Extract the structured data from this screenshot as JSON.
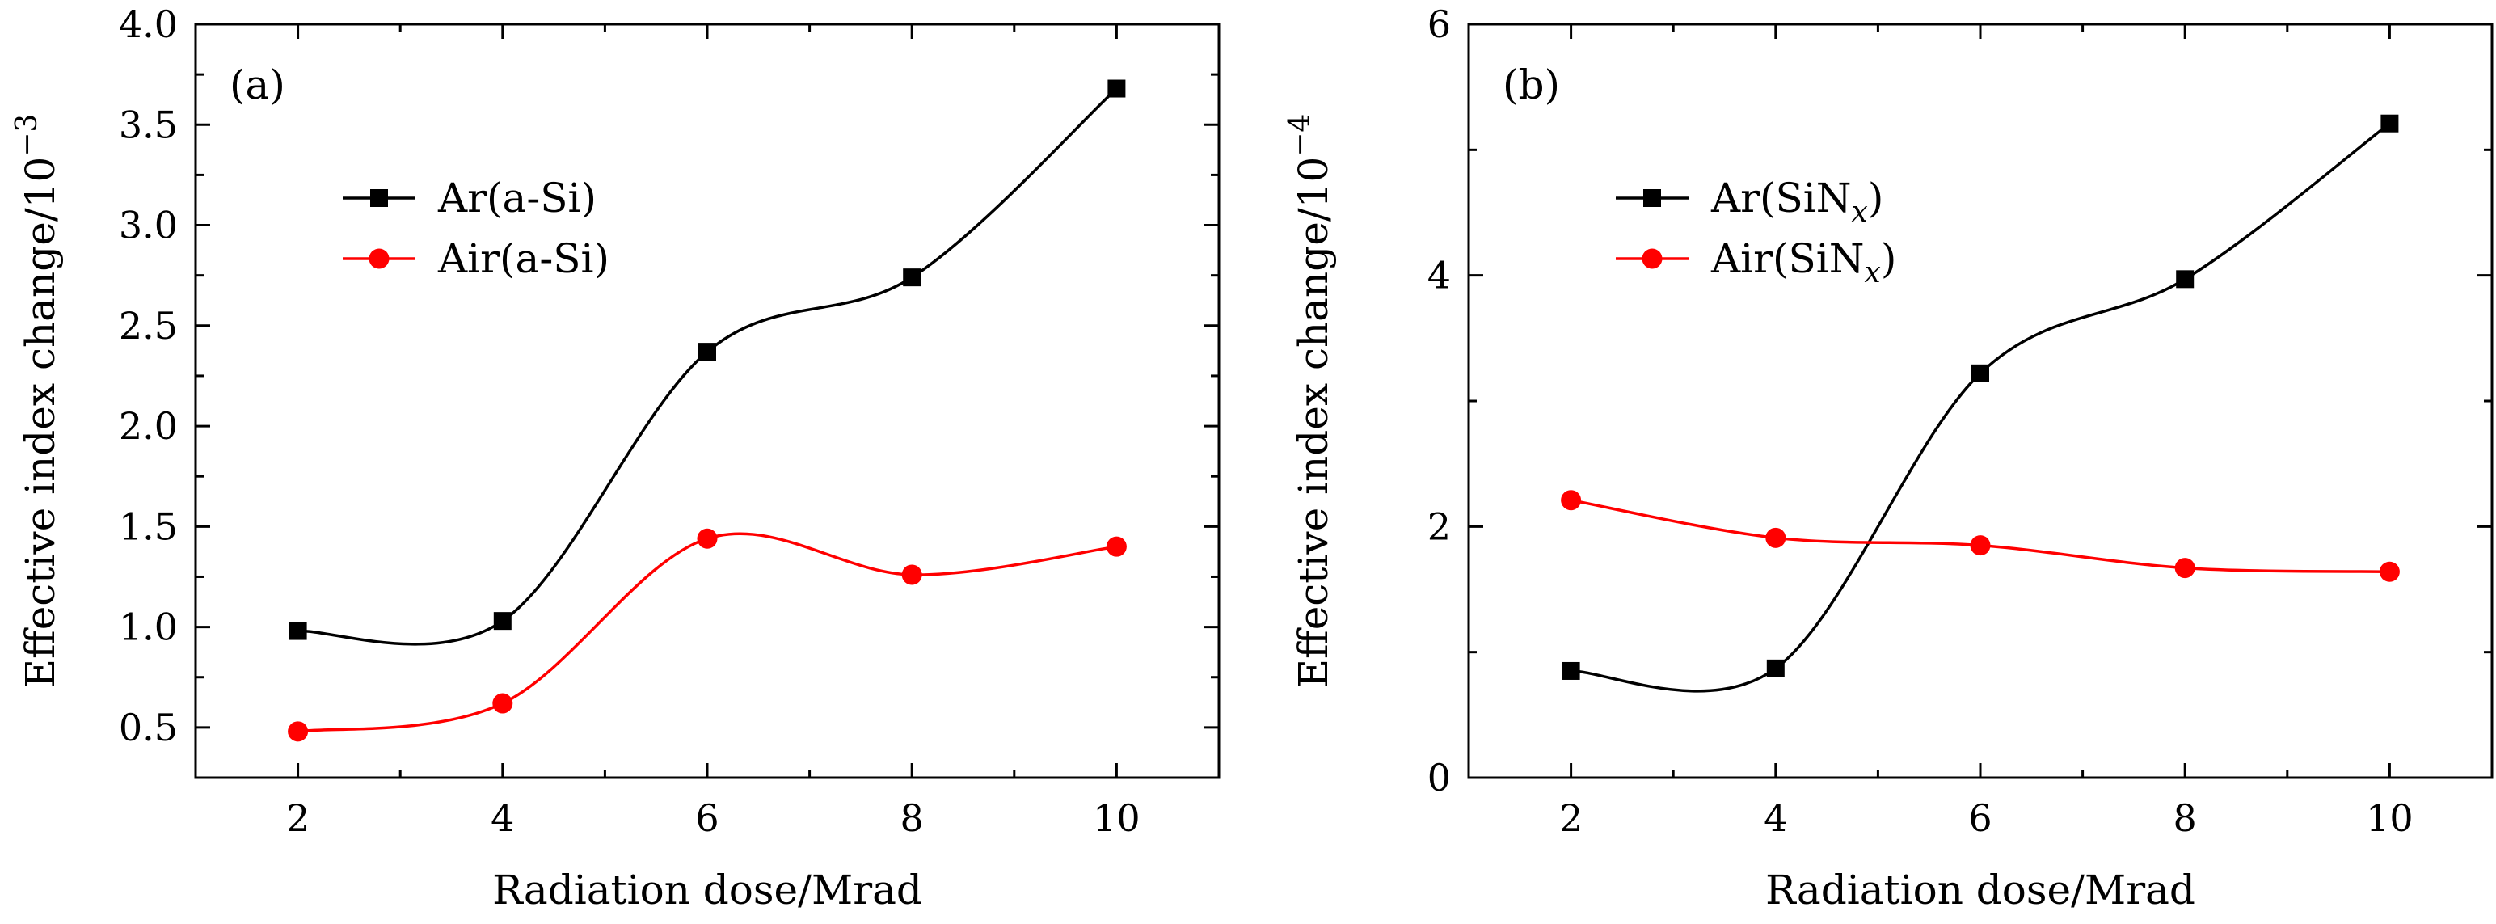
{
  "chart_data": [
    {
      "type": "line",
      "panel_label": "(a)",
      "xlabel": "Radiation dose/Mrad",
      "ylabel": "Effective index change/10",
      "ylabel_exponent": "−3",
      "xlim": [
        1,
        11
      ],
      "ylim": [
        0.25,
        4.0
      ],
      "xticks": [
        2,
        4,
        6,
        8,
        10
      ],
      "yticks": [
        0.5,
        1.0,
        1.5,
        2.0,
        2.5,
        3.0,
        3.5,
        4.0
      ],
      "ytick_labels": [
        "0.5",
        "1.0",
        "1.5",
        "2.0",
        "2.5",
        "3.0",
        "3.5",
        "4.0"
      ],
      "x": [
        2,
        4,
        6,
        8,
        10
      ],
      "legend_position": "upper-left",
      "grid": false,
      "series": [
        {
          "name": "Ar(a-Si)",
          "marker": "square",
          "color": "#000000",
          "values": [
            0.98,
            1.03,
            2.37,
            2.74,
            3.68
          ]
        },
        {
          "name": "Air(a-Si)",
          "marker": "circle",
          "color": "#ff0000",
          "values": [
            0.48,
            0.62,
            1.44,
            1.26,
            1.4
          ]
        }
      ]
    },
    {
      "type": "line",
      "panel_label": "(b)",
      "xlabel": "Radiation dose/Mrad",
      "ylabel": "Effective index change/10",
      "ylabel_exponent": "−4",
      "xlim": [
        1,
        11
      ],
      "ylim": [
        0,
        6
      ],
      "xticks": [
        2,
        4,
        6,
        8,
        10
      ],
      "yticks": [
        0,
        2,
        4,
        6
      ],
      "ytick_labels": [
        "0",
        "2",
        "4",
        "6"
      ],
      "x": [
        2,
        4,
        6,
        8,
        10
      ],
      "legend_position": "upper-left",
      "grid": false,
      "series": [
        {
          "name": "Ar(SiN",
          "name_subscript": "x",
          "name_suffix": ")",
          "marker": "square",
          "color": "#000000",
          "values": [
            0.85,
            0.87,
            3.22,
            3.97,
            5.21
          ]
        },
        {
          "name": "Air(SiN",
          "name_subscript": "x",
          "name_suffix": ")",
          "marker": "circle",
          "color": "#ff0000",
          "values": [
            2.21,
            1.91,
            1.85,
            1.67,
            1.64
          ]
        }
      ]
    }
  ]
}
